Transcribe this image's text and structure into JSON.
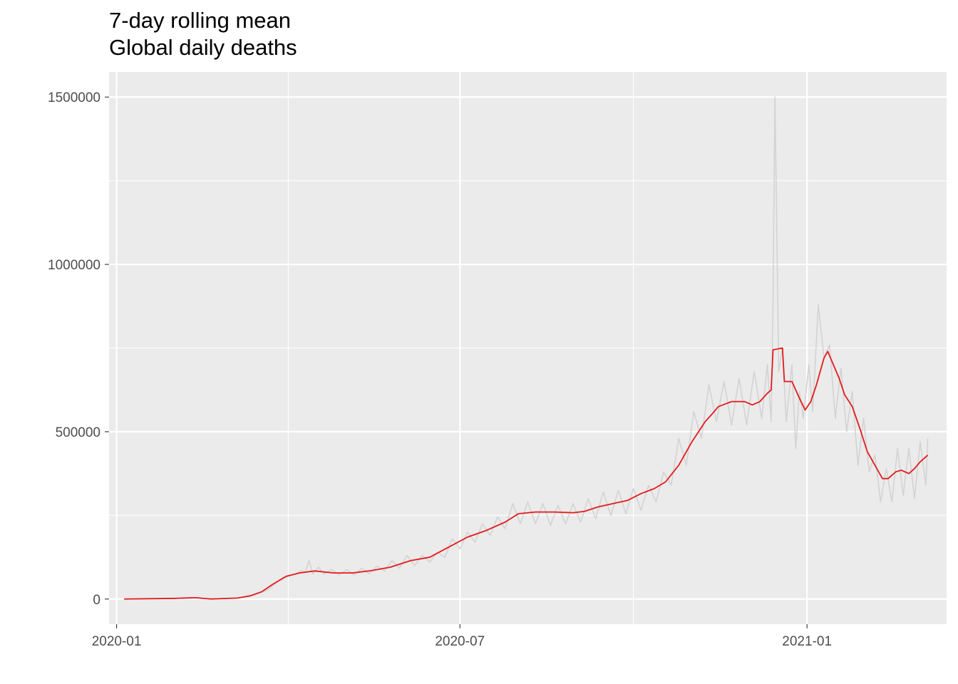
{
  "chart_data": {
    "type": "line",
    "title": "7-day rolling mean",
    "subtitle": "Global daily deaths",
    "xlabel": "",
    "ylabel": "",
    "x_range": [
      "2019-12-28",
      "2021-03-16"
    ],
    "ylim": [
      -75000,
      1575000
    ],
    "x_ticks": [
      {
        "date": "2020-01-01",
        "label": "2020-01"
      },
      {
        "date": "2020-07-01",
        "label": "2020-07"
      },
      {
        "date": "2021-01-01",
        "label": "2021-01"
      }
    ],
    "y_ticks": [
      {
        "value": 0,
        "label": "0"
      },
      {
        "value": 500000,
        "label": "500000"
      },
      {
        "value": 1000000,
        "label": "1000000"
      },
      {
        "value": 1500000,
        "label": "1500000"
      }
    ],
    "x_minor_ticks": [
      "2020-04-01",
      "2020-10-01"
    ],
    "y_minor_ticks": [
      250000,
      750000,
      1250000
    ],
    "grid": true,
    "background": "#EBEBEB",
    "series": [
      {
        "color": "#D3D3D3",
        "points": [
          [
            "2020-01-05",
            0
          ],
          [
            "2020-01-25",
            1000
          ],
          [
            "2020-02-05",
            3000
          ],
          [
            "2020-02-10",
            5000
          ],
          [
            "2020-02-15",
            2000
          ],
          [
            "2020-02-25",
            1000
          ],
          [
            "2020-03-05",
            3000
          ],
          [
            "2020-03-12",
            8000
          ],
          [
            "2020-03-18",
            20000
          ],
          [
            "2020-03-22",
            30000
          ],
          [
            "2020-03-25",
            45000
          ],
          [
            "2020-03-28",
            60000
          ],
          [
            "2020-03-31",
            70000
          ],
          [
            "2020-04-03",
            72000
          ],
          [
            "2020-04-05",
            75000
          ],
          [
            "2020-04-08",
            85000
          ],
          [
            "2020-04-10",
            80000
          ],
          [
            "2020-04-12",
            115000
          ],
          [
            "2020-04-14",
            75000
          ],
          [
            "2020-04-17",
            95000
          ],
          [
            "2020-04-20",
            75000
          ],
          [
            "2020-04-24",
            88000
          ],
          [
            "2020-04-28",
            72000
          ],
          [
            "2020-05-02",
            88000
          ],
          [
            "2020-05-06",
            72000
          ],
          [
            "2020-05-10",
            92000
          ],
          [
            "2020-05-14",
            76000
          ],
          [
            "2020-05-18",
            98000
          ],
          [
            "2020-05-22",
            84000
          ],
          [
            "2020-05-26",
            115000
          ],
          [
            "2020-05-30",
            92000
          ],
          [
            "2020-06-03",
            130000
          ],
          [
            "2020-06-07",
            100000
          ],
          [
            "2020-06-11",
            130000
          ],
          [
            "2020-06-15",
            110000
          ],
          [
            "2020-06-19",
            140000
          ],
          [
            "2020-06-23",
            125000
          ],
          [
            "2020-06-27",
            180000
          ],
          [
            "2020-07-01",
            150000
          ],
          [
            "2020-07-05",
            200000
          ],
          [
            "2020-07-09",
            170000
          ],
          [
            "2020-07-13",
            225000
          ],
          [
            "2020-07-17",
            190000
          ],
          [
            "2020-07-21",
            245000
          ],
          [
            "2020-07-25",
            210000
          ],
          [
            "2020-07-29",
            285000
          ],
          [
            "2020-08-02",
            225000
          ],
          [
            "2020-08-06",
            290000
          ],
          [
            "2020-08-10",
            225000
          ],
          [
            "2020-08-14",
            285000
          ],
          [
            "2020-08-18",
            220000
          ],
          [
            "2020-08-22",
            280000
          ],
          [
            "2020-08-26",
            225000
          ],
          [
            "2020-08-30",
            285000
          ],
          [
            "2020-09-03",
            230000
          ],
          [
            "2020-09-07",
            300000
          ],
          [
            "2020-09-11",
            240000
          ],
          [
            "2020-09-15",
            320000
          ],
          [
            "2020-09-19",
            250000
          ],
          [
            "2020-09-23",
            325000
          ],
          [
            "2020-09-27",
            255000
          ],
          [
            "2020-10-01",
            330000
          ],
          [
            "2020-10-05",
            265000
          ],
          [
            "2020-10-09",
            340000
          ],
          [
            "2020-10-13",
            290000
          ],
          [
            "2020-10-17",
            380000
          ],
          [
            "2020-10-21",
            340000
          ],
          [
            "2020-10-25",
            480000
          ],
          [
            "2020-10-29",
            400000
          ],
          [
            "2020-11-02",
            560000
          ],
          [
            "2020-11-06",
            480000
          ],
          [
            "2020-11-10",
            640000
          ],
          [
            "2020-11-14",
            530000
          ],
          [
            "2020-11-18",
            650000
          ],
          [
            "2020-11-22",
            520000
          ],
          [
            "2020-11-26",
            660000
          ],
          [
            "2020-11-30",
            520000
          ],
          [
            "2020-12-04",
            680000
          ],
          [
            "2020-12-08",
            540000
          ],
          [
            "2020-12-11",
            700000
          ],
          [
            "2020-12-13",
            530000
          ],
          [
            "2020-12-14",
            900000
          ],
          [
            "2020-12-15",
            1500000
          ],
          [
            "2020-12-16",
            1100000
          ],
          [
            "2020-12-17",
            680000
          ],
          [
            "2020-12-19",
            750000
          ],
          [
            "2020-12-21",
            530000
          ],
          [
            "2020-12-24",
            700000
          ],
          [
            "2020-12-26",
            450000
          ],
          [
            "2020-12-28",
            620000
          ],
          [
            "2020-12-30",
            540000
          ],
          [
            "2021-01-02",
            700000
          ],
          [
            "2021-01-04",
            560000
          ],
          [
            "2021-01-07",
            880000
          ],
          [
            "2021-01-10",
            720000
          ],
          [
            "2021-01-13",
            760000
          ],
          [
            "2021-01-16",
            540000
          ],
          [
            "2021-01-19",
            690000
          ],
          [
            "2021-01-22",
            500000
          ],
          [
            "2021-01-25",
            620000
          ],
          [
            "2021-01-28",
            400000
          ],
          [
            "2021-01-31",
            540000
          ],
          [
            "2021-02-03",
            380000
          ],
          [
            "2021-02-06",
            430000
          ],
          [
            "2021-02-09",
            290000
          ],
          [
            "2021-02-12",
            390000
          ],
          [
            "2021-02-15",
            290000
          ],
          [
            "2021-02-18",
            450000
          ],
          [
            "2021-02-21",
            310000
          ],
          [
            "2021-02-24",
            450000
          ],
          [
            "2021-02-27",
            300000
          ],
          [
            "2021-03-02",
            470000
          ],
          [
            "2021-03-05",
            340000
          ],
          [
            "2021-03-06",
            480000
          ]
        ]
      },
      {
        "color": "#E41A1C",
        "points": [
          [
            "2020-01-05",
            0
          ],
          [
            "2020-02-01",
            2000
          ],
          [
            "2020-02-12",
            4000
          ],
          [
            "2020-02-20",
            0
          ],
          [
            "2020-03-05",
            3000
          ],
          [
            "2020-03-12",
            10000
          ],
          [
            "2020-03-18",
            22000
          ],
          [
            "2020-03-24",
            45000
          ],
          [
            "2020-03-31",
            68000
          ],
          [
            "2020-04-07",
            78000
          ],
          [
            "2020-04-15",
            84000
          ],
          [
            "2020-04-25",
            78000
          ],
          [
            "2020-05-05",
            78000
          ],
          [
            "2020-05-15",
            85000
          ],
          [
            "2020-05-25",
            95000
          ],
          [
            "2020-06-05",
            115000
          ],
          [
            "2020-06-15",
            125000
          ],
          [
            "2020-06-25",
            155000
          ],
          [
            "2020-07-05",
            185000
          ],
          [
            "2020-07-15",
            205000
          ],
          [
            "2020-07-25",
            230000
          ],
          [
            "2020-08-01",
            255000
          ],
          [
            "2020-08-10",
            260000
          ],
          [
            "2020-08-20",
            260000
          ],
          [
            "2020-08-30",
            258000
          ],
          [
            "2020-09-05",
            262000
          ],
          [
            "2020-09-12",
            275000
          ],
          [
            "2020-09-20",
            285000
          ],
          [
            "2020-09-28",
            295000
          ],
          [
            "2020-10-05",
            315000
          ],
          [
            "2020-10-12",
            330000
          ],
          [
            "2020-10-18",
            350000
          ],
          [
            "2020-10-25",
            400000
          ],
          [
            "2020-11-01",
            470000
          ],
          [
            "2020-11-08",
            530000
          ],
          [
            "2020-11-12",
            555000
          ],
          [
            "2020-11-15",
            575000
          ],
          [
            "2020-11-22",
            590000
          ],
          [
            "2020-11-29",
            590000
          ],
          [
            "2020-12-03",
            580000
          ],
          [
            "2020-12-07",
            590000
          ],
          [
            "2020-12-11",
            615000
          ],
          [
            "2020-12-13",
            625000
          ],
          [
            "2020-12-14",
            745000
          ],
          [
            "2020-12-19",
            750000
          ],
          [
            "2020-12-20",
            650000
          ],
          [
            "2020-12-24",
            650000
          ],
          [
            "2020-12-28",
            600000
          ],
          [
            "2020-12-31",
            565000
          ],
          [
            "2021-01-03",
            590000
          ],
          [
            "2021-01-06",
            640000
          ],
          [
            "2021-01-10",
            720000
          ],
          [
            "2021-01-12",
            740000
          ],
          [
            "2021-01-15",
            700000
          ],
          [
            "2021-01-18",
            660000
          ],
          [
            "2021-01-21",
            610000
          ],
          [
            "2021-01-25",
            575000
          ],
          [
            "2021-01-29",
            510000
          ],
          [
            "2021-02-02",
            440000
          ],
          [
            "2021-02-06",
            400000
          ],
          [
            "2021-02-10",
            360000
          ],
          [
            "2021-02-13",
            360000
          ],
          [
            "2021-02-17",
            380000
          ],
          [
            "2021-02-20",
            385000
          ],
          [
            "2021-02-24",
            375000
          ],
          [
            "2021-02-27",
            390000
          ],
          [
            "2021-03-02",
            410000
          ],
          [
            "2021-03-06",
            430000
          ]
        ]
      }
    ]
  }
}
